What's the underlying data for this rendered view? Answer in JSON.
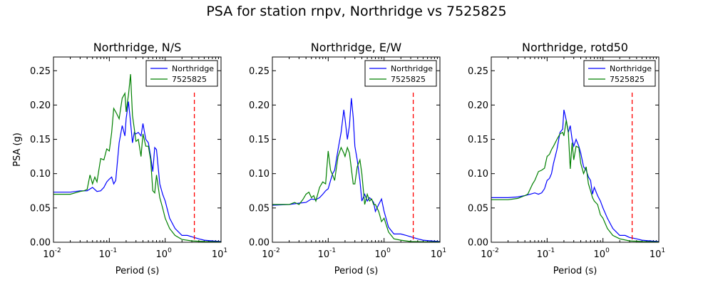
{
  "suptitle": "PSA for station rnpv, Northridge vs 7525825",
  "colors": {
    "series1": "#0000ff",
    "series2": "#008000",
    "cutoff": "#ff0000"
  },
  "chart_data": [
    {
      "type": "line",
      "title": "Northridge, N/S",
      "xlabel": "Period (s)",
      "ylabel": "PSA (g)",
      "xscale": "log",
      "xlim": [
        0.01,
        10
      ],
      "ylim": [
        0,
        0.27
      ],
      "xtick_labels": [
        {
          "base": "10",
          "exp": "-2"
        },
        {
          "base": "10",
          "exp": "-1"
        },
        {
          "base": "10",
          "exp": "0"
        },
        {
          "base": "10",
          "exp": "1"
        }
      ],
      "ytick_labels": [
        "0.00",
        "0.05",
        "0.10",
        "0.15",
        "0.20",
        "0.25"
      ],
      "cutoff_x": 3.33,
      "legend": "top-right",
      "series": [
        {
          "name": "Northridge",
          "color": "#0000ff",
          "x": [
            0.01,
            0.02,
            0.03,
            0.04,
            0.05,
            0.06,
            0.07,
            0.08,
            0.09,
            0.1,
            0.11,
            0.12,
            0.13,
            0.15,
            0.17,
            0.19,
            0.2,
            0.22,
            0.24,
            0.26,
            0.28,
            0.3,
            0.33,
            0.37,
            0.4,
            0.45,
            0.5,
            0.55,
            0.6,
            0.65,
            0.7,
            0.8,
            0.9,
            1.0,
            1.2,
            1.5,
            2,
            2.5,
            3,
            4,
            5,
            7,
            10
          ],
          "y": [
            0.073,
            0.073,
            0.075,
            0.075,
            0.08,
            0.074,
            0.075,
            0.08,
            0.088,
            0.092,
            0.095,
            0.085,
            0.09,
            0.145,
            0.17,
            0.155,
            0.18,
            0.205,
            0.175,
            0.145,
            0.16,
            0.158,
            0.16,
            0.155,
            0.173,
            0.15,
            0.145,
            0.125,
            0.103,
            0.138,
            0.135,
            0.085,
            0.07,
            0.06,
            0.035,
            0.02,
            0.01,
            0.01,
            0.008,
            0.005,
            0.003,
            0.002,
            0.001
          ]
        },
        {
          "name": "7525825",
          "color": "#008000",
          "x": [
            0.01,
            0.02,
            0.03,
            0.035,
            0.04,
            0.045,
            0.05,
            0.055,
            0.06,
            0.07,
            0.08,
            0.09,
            0.1,
            0.11,
            0.12,
            0.13,
            0.14,
            0.15,
            0.17,
            0.19,
            0.2,
            0.21,
            0.22,
            0.24,
            0.26,
            0.28,
            0.3,
            0.33,
            0.37,
            0.4,
            0.45,
            0.5,
            0.55,
            0.6,
            0.65,
            0.7,
            0.8,
            0.9,
            1.0,
            1.2,
            1.5,
            2,
            3,
            5,
            10
          ],
          "y": [
            0.07,
            0.07,
            0.074,
            0.075,
            0.077,
            0.098,
            0.085,
            0.095,
            0.088,
            0.122,
            0.12,
            0.136,
            0.133,
            0.16,
            0.195,
            0.19,
            0.185,
            0.18,
            0.21,
            0.217,
            0.19,
            0.203,
            0.215,
            0.245,
            0.185,
            0.165,
            0.147,
            0.15,
            0.125,
            0.158,
            0.14,
            0.14,
            0.12,
            0.075,
            0.072,
            0.098,
            0.065,
            0.05,
            0.035,
            0.02,
            0.01,
            0.004,
            0.002,
            0.001,
            0.0005
          ]
        }
      ]
    },
    {
      "type": "line",
      "title": "Northridge, E/W",
      "xlabel": "Period (s)",
      "ylabel": "",
      "xscale": "log",
      "xlim": [
        0.01,
        10
      ],
      "ylim": [
        0,
        0.27
      ],
      "xtick_labels": [
        {
          "base": "10",
          "exp": "-2"
        },
        {
          "base": "10",
          "exp": "-1"
        },
        {
          "base": "10",
          "exp": "0"
        },
        {
          "base": "10",
          "exp": "1"
        }
      ],
      "ytick_labels": [
        "0.00",
        "0.05",
        "0.10",
        "0.15",
        "0.20",
        "0.25"
      ],
      "cutoff_x": 3.33,
      "legend": "top-right",
      "series": [
        {
          "name": "Northridge",
          "color": "#0000ff",
          "x": [
            0.01,
            0.02,
            0.03,
            0.04,
            0.05,
            0.06,
            0.07,
            0.08,
            0.09,
            0.1,
            0.11,
            0.12,
            0.13,
            0.15,
            0.17,
            0.19,
            0.2,
            0.22,
            0.24,
            0.26,
            0.28,
            0.3,
            0.33,
            0.37,
            0.4,
            0.45,
            0.5,
            0.55,
            0.6,
            0.65,
            0.7,
            0.8,
            0.9,
            1.0,
            1.2,
            1.5,
            2,
            2.5,
            3,
            4,
            5,
            7,
            10
          ],
          "y": [
            0.054,
            0.055,
            0.057,
            0.058,
            0.063,
            0.062,
            0.065,
            0.07,
            0.075,
            0.078,
            0.09,
            0.1,
            0.105,
            0.135,
            0.16,
            0.193,
            0.18,
            0.15,
            0.17,
            0.21,
            0.182,
            0.14,
            0.12,
            0.09,
            0.06,
            0.07,
            0.06,
            0.065,
            0.062,
            0.058,
            0.045,
            0.055,
            0.063,
            0.045,
            0.022,
            0.012,
            0.012,
            0.01,
            0.008,
            0.005,
            0.003,
            0.002,
            0.001
          ]
        },
        {
          "name": "7525825",
          "color": "#008000",
          "x": [
            0.01,
            0.02,
            0.025,
            0.03,
            0.035,
            0.04,
            0.045,
            0.05,
            0.055,
            0.06,
            0.07,
            0.08,
            0.09,
            0.1,
            0.11,
            0.12,
            0.13,
            0.15,
            0.17,
            0.19,
            0.2,
            0.22,
            0.24,
            0.26,
            0.28,
            0.3,
            0.33,
            0.37,
            0.4,
            0.45,
            0.5,
            0.55,
            0.6,
            0.65,
            0.7,
            0.8,
            0.9,
            1.0,
            1.2,
            1.5,
            2,
            3,
            5,
            10
          ],
          "y": [
            0.055,
            0.055,
            0.058,
            0.055,
            0.062,
            0.07,
            0.073,
            0.065,
            0.068,
            0.06,
            0.08,
            0.088,
            0.085,
            0.133,
            0.105,
            0.098,
            0.09,
            0.125,
            0.138,
            0.13,
            0.125,
            0.138,
            0.13,
            0.107,
            0.085,
            0.085,
            0.11,
            0.12,
            0.1,
            0.055,
            0.07,
            0.06,
            0.063,
            0.055,
            0.055,
            0.045,
            0.03,
            0.035,
            0.015,
            0.005,
            0.003,
            0.001,
            0.0007,
            0.0005
          ]
        }
      ]
    },
    {
      "type": "line",
      "title": "Northridge, rotd50",
      "xlabel": "Period (s)",
      "ylabel": "",
      "xscale": "log",
      "xlim": [
        0.01,
        10
      ],
      "ylim": [
        0,
        0.27
      ],
      "xtick_labels": [
        {
          "base": "10",
          "exp": "-2"
        },
        {
          "base": "10",
          "exp": "-1"
        },
        {
          "base": "10",
          "exp": "0"
        },
        {
          "base": "10",
          "exp": "1"
        }
      ],
      "ytick_labels": [
        "0.00",
        "0.05",
        "0.10",
        "0.15",
        "0.20",
        "0.25"
      ],
      "cutoff_x": 3.33,
      "legend": "top-right",
      "series": [
        {
          "name": "Northridge",
          "color": "#0000ff",
          "x": [
            0.01,
            0.02,
            0.03,
            0.04,
            0.05,
            0.06,
            0.07,
            0.08,
            0.09,
            0.1,
            0.11,
            0.12,
            0.13,
            0.15,
            0.17,
            0.19,
            0.2,
            0.22,
            0.24,
            0.26,
            0.28,
            0.3,
            0.33,
            0.37,
            0.4,
            0.45,
            0.5,
            0.55,
            0.6,
            0.65,
            0.7,
            0.8,
            0.9,
            1.0,
            1.2,
            1.5,
            2,
            2.5,
            3,
            4,
            5,
            7,
            10
          ],
          "y": [
            0.065,
            0.065,
            0.066,
            0.068,
            0.07,
            0.072,
            0.07,
            0.072,
            0.078,
            0.09,
            0.093,
            0.1,
            0.115,
            0.135,
            0.16,
            0.165,
            0.193,
            0.178,
            0.16,
            0.17,
            0.15,
            0.14,
            0.15,
            0.14,
            0.13,
            0.11,
            0.105,
            0.095,
            0.09,
            0.07,
            0.08,
            0.068,
            0.06,
            0.05,
            0.035,
            0.02,
            0.01,
            0.01,
            0.007,
            0.005,
            0.003,
            0.002,
            0.001
          ]
        },
        {
          "name": "7525825",
          "color": "#008000",
          "x": [
            0.01,
            0.02,
            0.03,
            0.04,
            0.045,
            0.05,
            0.055,
            0.06,
            0.07,
            0.08,
            0.09,
            0.1,
            0.11,
            0.12,
            0.13,
            0.15,
            0.17,
            0.19,
            0.2,
            0.22,
            0.24,
            0.26,
            0.28,
            0.3,
            0.33,
            0.37,
            0.4,
            0.45,
            0.5,
            0.55,
            0.6,
            0.65,
            0.7,
            0.8,
            0.9,
            1.0,
            1.2,
            1.5,
            2,
            3,
            5,
            10
          ],
          "y": [
            0.062,
            0.062,
            0.064,
            0.068,
            0.07,
            0.078,
            0.085,
            0.09,
            0.103,
            0.105,
            0.108,
            0.125,
            0.128,
            0.135,
            0.14,
            0.15,
            0.158,
            0.16,
            0.155,
            0.178,
            0.16,
            0.107,
            0.145,
            0.12,
            0.14,
            0.138,
            0.115,
            0.1,
            0.11,
            0.085,
            0.075,
            0.065,
            0.06,
            0.055,
            0.04,
            0.035,
            0.02,
            0.01,
            0.005,
            0.002,
            0.001,
            0.0005
          ]
        }
      ]
    }
  ]
}
